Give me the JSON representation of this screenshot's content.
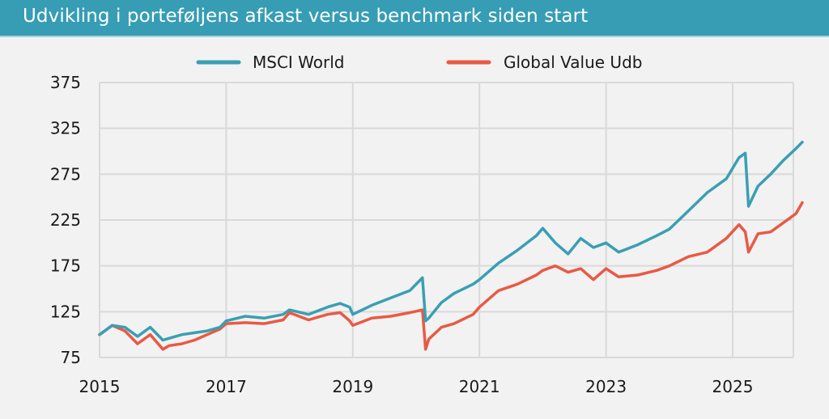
{
  "header": {
    "title": "Udvikling i porteføljens afkast versus benchmark siden start"
  },
  "colors": {
    "title_bar": "#369db5",
    "msci": "#3a9fb3",
    "value": "#e85a45",
    "grid": "#d9d9d9",
    "background": "#f2f2f2"
  },
  "legend": [
    {
      "label": "MSCI World",
      "color": "#3a9fb3"
    },
    {
      "label": "Global Value Udb",
      "color": "#e85a45"
    }
  ],
  "axes": {
    "y_ticks": [
      "375",
      "325",
      "275",
      "225",
      "175",
      "125",
      "75"
    ],
    "x_ticks": [
      "2015",
      "2017",
      "2019",
      "2021",
      "2023",
      "2025"
    ]
  },
  "chart_data": {
    "type": "line",
    "title": "Udvikling i porteføljens afkast versus benchmark siden start",
    "xlabel": "",
    "ylabel": "",
    "ylim": [
      75,
      375
    ],
    "xlim": [
      2015,
      2026.1
    ],
    "y_ticks": [
      75,
      125,
      175,
      225,
      275,
      325,
      375
    ],
    "x_ticks": [
      2015,
      2017,
      2019,
      2021,
      2023,
      2025
    ],
    "grid": true,
    "legend_position": "top",
    "x": [
      2015.0,
      2015.2,
      2015.4,
      2015.6,
      2015.8,
      2016.0,
      2016.1,
      2016.3,
      2016.5,
      2016.7,
      2016.9,
      2017.0,
      2017.3,
      2017.6,
      2017.9,
      2018.0,
      2018.3,
      2018.6,
      2018.8,
      2018.95,
      2019.0,
      2019.3,
      2019.6,
      2019.9,
      2020.1,
      2020.15,
      2020.2,
      2020.4,
      2020.6,
      2020.9,
      2021.0,
      2021.3,
      2021.6,
      2021.9,
      2022.0,
      2022.2,
      2022.4,
      2022.6,
      2022.8,
      2023.0,
      2023.2,
      2023.5,
      2023.8,
      2024.0,
      2024.3,
      2024.6,
      2024.9,
      2025.1,
      2025.2,
      2025.25,
      2025.4,
      2025.6,
      2025.8,
      2026.0,
      2026.1
    ],
    "series": [
      {
        "name": "MSCI World",
        "values": [
          100,
          110,
          108,
          98,
          108,
          94,
          96,
          100,
          102,
          104,
          108,
          115,
          120,
          118,
          122,
          127,
          122,
          130,
          134,
          130,
          122,
          132,
          140,
          148,
          162,
          115,
          118,
          135,
          145,
          155,
          160,
          178,
          192,
          208,
          216,
          200,
          188,
          205,
          195,
          200,
          190,
          198,
          208,
          215,
          235,
          255,
          270,
          293,
          298,
          240,
          262,
          275,
          290,
          303,
          310
        ]
      },
      {
        "name": "Global Value Udb",
        "values": [
          100,
          110,
          104,
          90,
          100,
          84,
          88,
          90,
          94,
          100,
          106,
          112,
          113,
          112,
          116,
          124,
          116,
          122,
          124,
          115,
          110,
          118,
          120,
          124,
          127,
          84,
          95,
          108,
          112,
          122,
          130,
          148,
          155,
          165,
          170,
          175,
          168,
          172,
          160,
          172,
          163,
          165,
          170,
          175,
          185,
          190,
          205,
          220,
          212,
          190,
          210,
          212,
          222,
          232,
          244
        ]
      }
    ]
  }
}
